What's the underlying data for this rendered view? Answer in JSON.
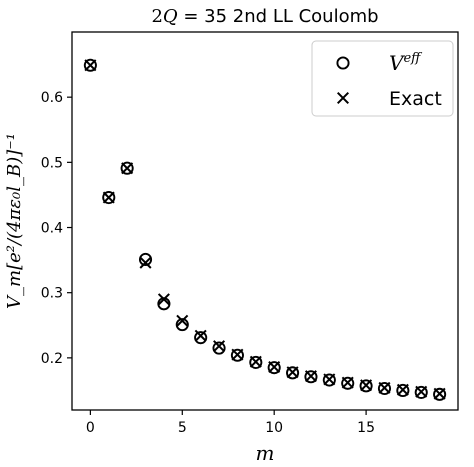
{
  "chart_data": {
    "type": "scatter",
    "title": "2Q = 35 2nd LL Coulomb",
    "xlabel": "m",
    "ylabel": "V_m[e²/(4πε₀l_B)]⁻¹",
    "xlim": [
      -1,
      20
    ],
    "ylim": [
      0.12,
      0.7
    ],
    "xticks": [
      "0",
      "5",
      "10",
      "15"
    ],
    "yticks": [
      "0.2",
      "0.3",
      "0.4",
      "0.5",
      "0.6"
    ],
    "grid": false,
    "legend_position": "top-right",
    "series": [
      {
        "name": "V^eff",
        "marker": "circle",
        "x": [
          0,
          1,
          2,
          3,
          4,
          5,
          6,
          7,
          8,
          9,
          10,
          11,
          12,
          13,
          14,
          15,
          16,
          17,
          18,
          19
        ],
        "y": [
          0.649,
          0.446,
          0.491,
          0.351,
          0.283,
          0.251,
          0.231,
          0.215,
          0.204,
          0.193,
          0.185,
          0.177,
          0.171,
          0.166,
          0.161,
          0.157,
          0.153,
          0.15,
          0.147,
          0.144
        ]
      },
      {
        "name": "Exact",
        "marker": "x",
        "x": [
          0,
          1,
          2,
          3,
          4,
          5,
          6,
          7,
          8,
          9,
          10,
          11,
          12,
          13,
          14,
          15,
          16,
          17,
          18,
          19
        ],
        "y": [
          0.649,
          0.446,
          0.491,
          0.346,
          0.29,
          0.257,
          0.234,
          0.218,
          0.205,
          0.194,
          0.186,
          0.178,
          0.172,
          0.167,
          0.162,
          0.158,
          0.154,
          0.151,
          0.148,
          0.145
        ]
      }
    ]
  }
}
